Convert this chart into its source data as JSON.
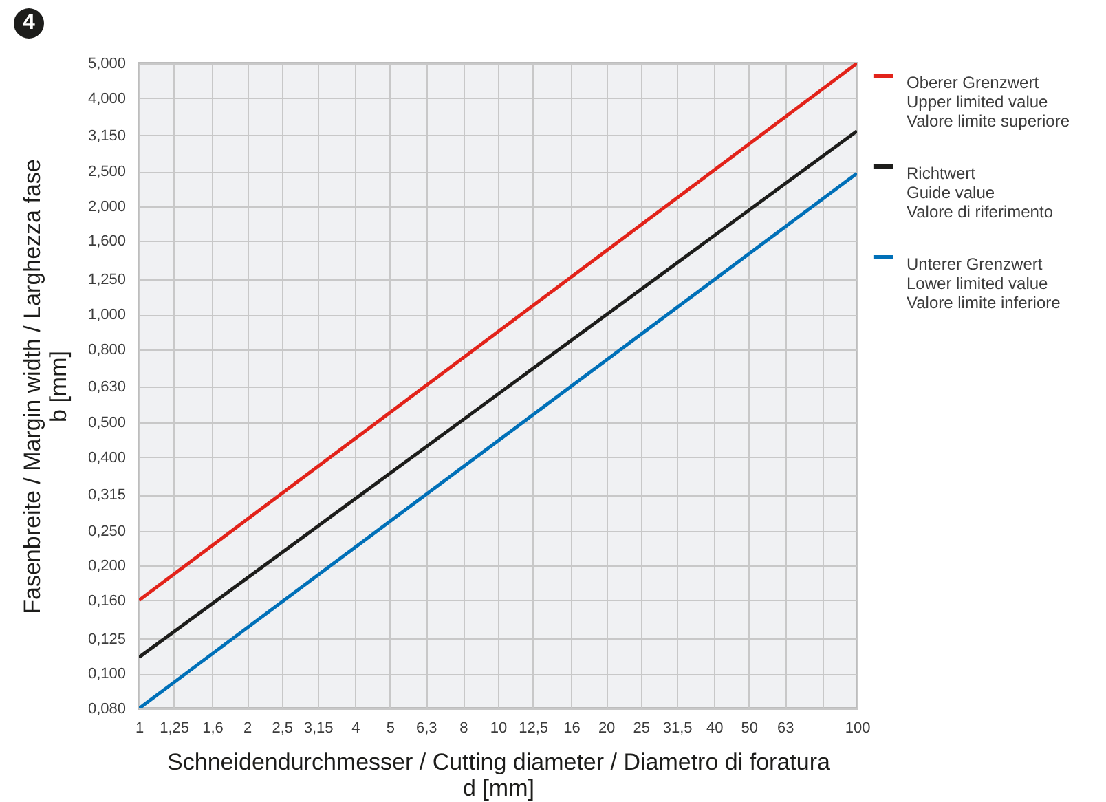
{
  "chart_data": {
    "type": "line",
    "annotations": [
      "4"
    ],
    "xlabel": "Schneidendurchmesser / Cutting diameter / Diametro di foratura\nd [mm]",
    "ylabel": "Fasenbreite / Margin width / Larghezza fase\nb [mm]",
    "x": [
      1,
      100
    ],
    "series": [
      {
        "name": "Oberer Grenzwert\nUpper limited value\nValore limite superiore",
        "color": "#e2231a",
        "values": [
          0.16,
          5.0
        ]
      },
      {
        "name": "Richtwert\nGuide value\nValore di riferimento",
        "color": "#1d1d1b",
        "values": [
          0.111,
          3.24
        ]
      },
      {
        "name": "Unterer Grenzwert\nLower limited value\nValore limite inferiore",
        "color": "#0070b8",
        "values": [
          0.08,
          2.47
        ]
      }
    ],
    "log": "xy",
    "xlim": [
      1,
      100
    ],
    "ylim": [
      0.08,
      5
    ],
    "xticks": [
      1,
      {
        "value": 1.25,
        "label": "1,25"
      },
      {
        "value": 1.6,
        "label": "1,6"
      },
      2,
      {
        "value": 2.5,
        "label": "2,5"
      },
      {
        "value": 3.15,
        "label": "3,15"
      },
      4,
      5,
      {
        "value": 6.3,
        "label": "6,3"
      },
      8,
      10,
      {
        "value": 12.5,
        "label": "12,5"
      },
      16,
      20,
      25,
      {
        "value": 31.5,
        "label": "31,5"
      },
      40,
      50,
      63,
      {
        "value": 80,
        "label": null
      },
      100
    ],
    "yticks": [
      {
        "value": 0.08,
        "label": "0,080"
      },
      {
        "value": 0.1,
        "label": "0,100"
      },
      {
        "value": 0.125,
        "label": "0,125"
      },
      {
        "value": 0.16,
        "label": "0,160"
      },
      {
        "value": 0.2,
        "label": "0,200"
      },
      {
        "value": 0.25,
        "label": "0,250"
      },
      {
        "value": 0.315,
        "label": "0,315"
      },
      {
        "value": 0.4,
        "label": "0,400"
      },
      {
        "value": 0.5,
        "label": "0,500"
      },
      {
        "value": 0.63,
        "label": "0,630"
      },
      {
        "value": 0.8,
        "label": "0,800"
      },
      {
        "value": 1,
        "label": "1,000"
      },
      {
        "value": 1.25,
        "label": "1,250"
      },
      {
        "value": 1.6,
        "label": "1,600"
      },
      {
        "value": 2,
        "label": "2,000"
      },
      {
        "value": 2.5,
        "label": "2,500"
      },
      {
        "value": 3.15,
        "label": "3,150"
      },
      {
        "value": 4,
        "label": "4,000"
      },
      {
        "value": 5,
        "label": "5,000"
      }
    ],
    "grid": true,
    "legend": "right",
    "marker": "none",
    "line_style": "solid"
  }
}
